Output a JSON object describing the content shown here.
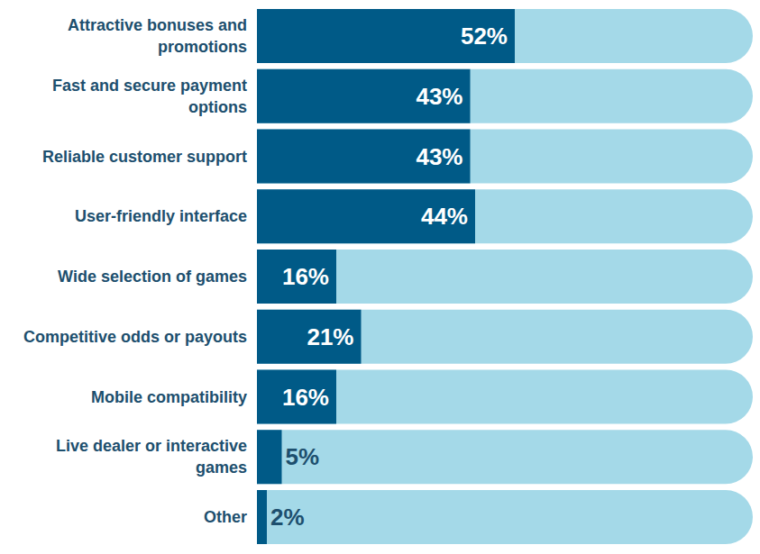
{
  "chart_data": {
    "type": "bar",
    "orientation": "horizontal",
    "categories": [
      "Attractive bonuses and promotions",
      "Fast and secure payment options",
      "Reliable customer support",
      "User-friendly interface",
      "Wide selection of games",
      "Competitive odds or payouts",
      "Mobile compatibility",
      "Live dealer or interactive games",
      "Other"
    ],
    "values": [
      52,
      43,
      43,
      44,
      16,
      21,
      16,
      5,
      2
    ],
    "value_labels": [
      "52%",
      "43%",
      "43%",
      "44%",
      "16%",
      "21%",
      "16%",
      "5%",
      "2%"
    ],
    "color": "#005a87",
    "xlim": [
      0,
      100
    ],
    "data_labels": true,
    "tick_labels": false
  }
}
